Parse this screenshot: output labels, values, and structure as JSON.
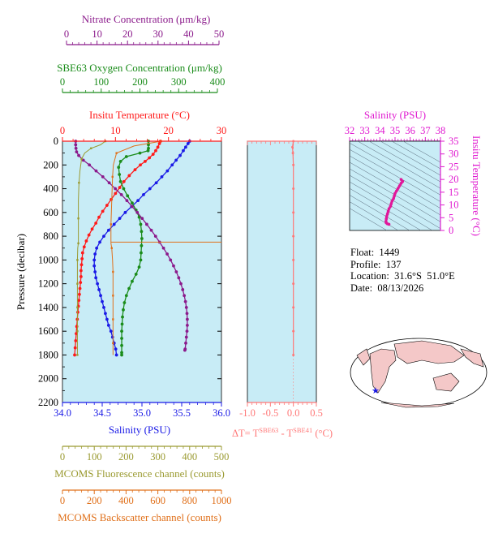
{
  "colors": {
    "nitrate": "#8b1a8b",
    "oxygen": "#1a8c1a",
    "temperature": "#ff1a1a",
    "salinity": "#1a1ae6",
    "fluorescence": "#9a9a30",
    "backscatter": "#e0701a",
    "delta": "#ff7878",
    "ts_axis": "#e01ad0",
    "ts_curve": "#e0189a",
    "plot_bg": "#c8ecf6",
    "land": "#f4c8c8"
  },
  "axes": {
    "nitrate": {
      "label": "Nitrate Concentration (μm/kg)",
      "ticks": [
        "0",
        "10",
        "20",
        "30",
        "40",
        "50"
      ],
      "range": [
        0,
        50
      ]
    },
    "oxygen": {
      "label": "SBE63 Oxygen Concentration (μm/kg)",
      "ticks": [
        "0",
        "100",
        "200",
        "300",
        "400"
      ],
      "range": [
        0,
        400
      ]
    },
    "temperature": {
      "label": "Insitu Temperature (°C)",
      "ticks": [
        "0",
        "10",
        "20",
        "30"
      ],
      "range": [
        0,
        30
      ]
    },
    "pressure": {
      "label": "Pressure (decibar)",
      "ticks": [
        "0",
        "200",
        "400",
        "600",
        "800",
        "1000",
        "1200",
        "1400",
        "1600",
        "1800",
        "2000",
        "2200"
      ],
      "range": [
        0,
        2200
      ]
    },
    "salinity": {
      "label": "Salinity (PSU)",
      "ticks": [
        "34.0",
        "34.5",
        "35.0",
        "35.5",
        "36.0"
      ],
      "range": [
        34.0,
        36.0
      ]
    },
    "fluorescence": {
      "label": "MCOMS Fluorescence channel (counts)",
      "ticks": [
        "0",
        "100",
        "200",
        "300",
        "400",
        "500"
      ],
      "range": [
        0,
        500
      ]
    },
    "backscatter": {
      "label": "MCOMS Backscatter channel (counts)",
      "ticks": [
        "0",
        "200",
        "400",
        "600",
        "800",
        "1000"
      ],
      "range": [
        0,
        1000
      ]
    },
    "delta": {
      "label_prefix": "ΔT= T",
      "label_sup1": "SBE63",
      "label_mid": " - T",
      "label_sup2": "SBE41",
      "label_suffix": " (°C)",
      "ticks": [
        "-1.0",
        "-0.5",
        "0.0",
        "0.5"
      ],
      "range": [
        -1.0,
        0.5
      ]
    },
    "ts_salinity": {
      "label": "Salinity (PSU)",
      "ticks": [
        "32",
        "33",
        "34",
        "35",
        "36",
        "37",
        "38"
      ],
      "range": [
        32,
        38
      ]
    },
    "ts_temperature": {
      "label": "Insitu Temperature (°C)",
      "ticks": [
        "0",
        "5",
        "10",
        "15",
        "20",
        "25",
        "30",
        "35"
      ],
      "range": [
        0,
        35
      ]
    }
  },
  "info": {
    "float": "Float:  1449",
    "profile": "Profile:  137",
    "location": "Location:  31.6°S  51.0°E",
    "date": "Date:  08/13/2026"
  },
  "chart_data": [
    {
      "type": "line",
      "panel": "profiles",
      "y_axis": "Pressure (decibar)",
      "ylim": [
        2200,
        0
      ],
      "series": [
        {
          "axis": "temperature",
          "points": [
            [
              18.5,
              0
            ],
            [
              18.3,
              20
            ],
            [
              18.0,
              50
            ],
            [
              17.6,
              80
            ],
            [
              17.1,
              110
            ],
            [
              16.4,
              140
            ],
            [
              15.6,
              170
            ],
            [
              14.7,
              200
            ],
            [
              13.7,
              240
            ],
            [
              12.6,
              290
            ],
            [
              11.6,
              340
            ],
            [
              10.8,
              390
            ],
            [
              10.0,
              440
            ],
            [
              9.2,
              490
            ],
            [
              8.4,
              540
            ],
            [
              7.6,
              590
            ],
            [
              6.9,
              640
            ],
            [
              6.3,
              690
            ],
            [
              5.6,
              740
            ],
            [
              5.0,
              790
            ],
            [
              4.5,
              840
            ],
            [
              4.1,
              890
            ],
            [
              3.8,
              940
            ],
            [
              3.7,
              990
            ],
            [
              3.6,
              1040
            ],
            [
              3.5,
              1090
            ],
            [
              3.5,
              1140
            ],
            [
              3.4,
              1190
            ],
            [
              3.3,
              1240
            ],
            [
              3.2,
              1290
            ],
            [
              3.1,
              1340
            ],
            [
              3.0,
              1390
            ],
            [
              2.9,
              1440
            ],
            [
              2.8,
              1500
            ],
            [
              2.7,
              1560
            ],
            [
              2.6,
              1620
            ],
            [
              2.5,
              1680
            ],
            [
              2.4,
              1740
            ],
            [
              2.3,
              1800
            ]
          ]
        },
        {
          "axis": "salinity",
          "points": [
            [
              35.6,
              0
            ],
            [
              35.58,
              20
            ],
            [
              35.55,
              50
            ],
            [
              35.52,
              80
            ],
            [
              35.48,
              120
            ],
            [
              35.43,
              160
            ],
            [
              35.38,
              200
            ],
            [
              35.32,
              250
            ],
            [
              35.25,
              300
            ],
            [
              35.18,
              350
            ],
            [
              35.1,
              400
            ],
            [
              35.02,
              450
            ],
            [
              34.95,
              500
            ],
            [
              34.87,
              550
            ],
            [
              34.79,
              600
            ],
            [
              34.72,
              650
            ],
            [
              34.65,
              700
            ],
            [
              34.58,
              750
            ],
            [
              34.52,
              800
            ],
            [
              34.47,
              850
            ],
            [
              34.43,
              900
            ],
            [
              34.41,
              950
            ],
            [
              34.4,
              1000
            ],
            [
              34.4,
              1050
            ],
            [
              34.41,
              1100
            ],
            [
              34.42,
              1150
            ],
            [
              34.44,
              1200
            ],
            [
              34.46,
              1250
            ],
            [
              34.48,
              1300
            ],
            [
              34.5,
              1350
            ],
            [
              34.52,
              1400
            ],
            [
              34.54,
              1450
            ],
            [
              34.56,
              1500
            ],
            [
              34.58,
              1550
            ],
            [
              34.61,
              1600
            ],
            [
              34.63,
              1650
            ],
            [
              34.65,
              1700
            ],
            [
              34.67,
              1750
            ],
            [
              34.68,
              1800
            ]
          ]
        },
        {
          "axis": "oxygen",
          "points": [
            [
              222,
              0
            ],
            [
              222,
              30
            ],
            [
              222,
              60
            ],
            [
              221,
              80
            ],
            [
              200,
              100
            ],
            [
              165,
              130
            ],
            [
              150,
              170
            ],
            [
              145,
              220
            ],
            [
              147,
              280
            ],
            [
              150,
              340
            ],
            [
              158,
              400
            ],
            [
              168,
              460
            ],
            [
              180,
              520
            ],
            [
              190,
              580
            ],
            [
              198,
              640
            ],
            [
              202,
              700
            ],
            [
              204,
              760
            ],
            [
              205,
              820
            ],
            [
              204,
              880
            ],
            [
              203,
              940
            ],
            [
              202,
              1000
            ],
            [
              198,
              1060
            ],
            [
              190,
              1120
            ],
            [
              180,
              1180
            ],
            [
              172,
              1240
            ],
            [
              165,
              1300
            ],
            [
              160,
              1360
            ],
            [
              157,
              1420
            ],
            [
              155,
              1480
            ],
            [
              154,
              1540
            ],
            [
              153,
              1600
            ],
            [
              153,
              1660
            ],
            [
              153,
              1720
            ],
            [
              153,
              1780
            ],
            [
              153,
              1800
            ]
          ]
        },
        {
          "axis": "nitrate",
          "points": [
            [
              3.0,
              0
            ],
            [
              3.0,
              30
            ],
            [
              3.1,
              60
            ],
            [
              3.3,
              90
            ],
            [
              4.0,
              120
            ],
            [
              5.5,
              160
            ],
            [
              7.5,
              200
            ],
            [
              9.7,
              250
            ],
            [
              11.9,
              300
            ],
            [
              14.0,
              350
            ],
            [
              16.0,
              400
            ],
            [
              18.0,
              450
            ],
            [
              19.8,
              500
            ],
            [
              21.5,
              550
            ],
            [
              23.2,
              600
            ],
            [
              24.8,
              650
            ],
            [
              26.3,
              700
            ],
            [
              27.8,
              750
            ],
            [
              29.2,
              800
            ],
            [
              30.5,
              850
            ],
            [
              31.8,
              900
            ],
            [
              33.0,
              950
            ],
            [
              34.1,
              1000
            ],
            [
              35.1,
              1050
            ],
            [
              36.0,
              1100
            ],
            [
              36.8,
              1150
            ],
            [
              37.5,
              1200
            ],
            [
              38.1,
              1250
            ],
            [
              38.6,
              1300
            ],
            [
              39.0,
              1350
            ],
            [
              39.3,
              1400
            ],
            [
              39.5,
              1450
            ],
            [
              39.6,
              1500
            ],
            [
              39.6,
              1550
            ],
            [
              39.5,
              1600
            ],
            [
              39.3,
              1650
            ],
            [
              39.1,
              1700
            ],
            [
              38.9,
              1750
            ],
            [
              38.8,
              1760
            ]
          ]
        },
        {
          "axis": "fluorescence",
          "points": [
            [
              135,
              0
            ],
            [
              120,
              30
            ],
            [
              90,
              60
            ],
            [
              70,
              100
            ],
            [
              60,
              150
            ],
            [
              55,
              250
            ],
            [
              52,
              350
            ],
            [
              50,
              500
            ],
            [
              50,
              650
            ],
            [
              50,
              800
            ],
            [
              50,
              860
            ],
            [
              48,
              900
            ],
            [
              47,
              1000
            ],
            [
              47,
              1100
            ],
            [
              47,
              1200
            ],
            [
              47,
              1300
            ],
            [
              47,
              1400
            ],
            [
              47,
              1500
            ],
            [
              47,
              1600
            ],
            [
              47,
              1700
            ],
            [
              47,
              1800
            ]
          ]
        },
        {
          "axis": "backscatter",
          "points": [
            [
              620,
              0
            ],
            [
              450,
              40
            ],
            [
              340,
              100
            ],
            [
              320,
              200
            ],
            [
              315,
              300
            ],
            [
              310,
              500
            ],
            [
              305,
              700
            ],
            [
              305,
              860
            ],
            [
              310,
              900
            ],
            [
              315,
              1000
            ],
            [
              318,
              1100
            ],
            [
              318,
              1200
            ],
            [
              318,
              1300
            ],
            [
              318,
              1400
            ],
            [
              318,
              1500
            ],
            [
              318,
              1600
            ],
            [
              318,
              1700
            ],
            [
              318,
              1800
            ]
          ]
        }
      ]
    },
    {
      "type": "line",
      "panel": "delta-temperature",
      "x_axis": "ΔT (°C)",
      "y_axis": "Pressure (decibar)",
      "series": [
        {
          "axis": "delta",
          "points": [
            [
              0.0,
              0
            ],
            [
              -0.02,
              50
            ],
            [
              -0.01,
              100
            ],
            [
              0.0,
              200
            ],
            [
              0.0,
              400
            ],
            [
              0.0,
              600
            ],
            [
              0.0,
              800
            ],
            [
              0.0,
              1000
            ],
            [
              0.0,
              1200
            ],
            [
              0.0,
              1400
            ],
            [
              0.0,
              1600
            ],
            [
              0.0,
              1800
            ]
          ]
        }
      ]
    },
    {
      "type": "scatter",
      "panel": "temperature-salinity",
      "x_axis": "Salinity (PSU)",
      "y_axis": "Insitu Temperature (°C)",
      "series": [
        {
          "points": [
            [
              35.4,
              20
            ],
            [
              35.5,
              19.2
            ],
            [
              35.4,
              18.5
            ],
            [
              35.3,
              17.5
            ],
            [
              35.2,
              16.5
            ],
            [
              35.1,
              15.5
            ],
            [
              35.0,
              14.5
            ],
            [
              34.95,
              13.5
            ],
            [
              34.9,
              12.5
            ],
            [
              34.8,
              11.5
            ],
            [
              34.75,
              10.5
            ],
            [
              34.7,
              9.5
            ],
            [
              34.6,
              8.5
            ],
            [
              34.55,
              7.5
            ],
            [
              34.5,
              6.5
            ],
            [
              34.45,
              5.5
            ],
            [
              34.42,
              4.5
            ],
            [
              34.4,
              3.5
            ],
            [
              34.42,
              3.0
            ],
            [
              34.5,
              2.6
            ],
            [
              34.6,
              2.4
            ]
          ]
        }
      ]
    }
  ]
}
